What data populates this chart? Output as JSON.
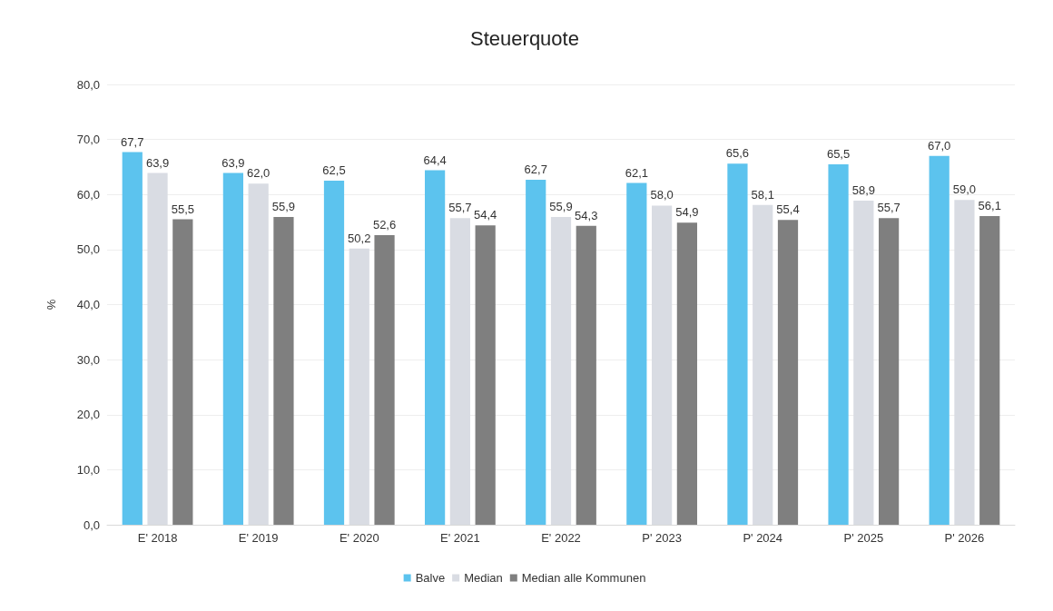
{
  "chart_data": {
    "type": "bar",
    "title": "Steuerquote",
    "ylabel": "%",
    "categories": [
      "E' 2018",
      "E' 2019",
      "E' 2020",
      "E' 2021",
      "E' 2022",
      "P' 2023",
      "P' 2024",
      "P' 2025",
      "P' 2026"
    ],
    "series": [
      {
        "name": "Balve",
        "color": "#5cc3ee",
        "values": [
          67.7,
          63.9,
          62.5,
          64.4,
          62.7,
          62.1,
          65.6,
          65.5,
          67.0
        ],
        "value_labels": [
          "67,7",
          "63,9",
          "62,5",
          "64,4",
          "62,7",
          "62,1",
          "65,6",
          "65,5",
          "67,0"
        ]
      },
      {
        "name": "Median",
        "color": "#d9dce3",
        "values": [
          63.9,
          62.0,
          50.2,
          55.7,
          55.9,
          58.0,
          58.1,
          58.9,
          59.0
        ],
        "value_labels": [
          "63,9",
          "62,0",
          "50,2",
          "55,7",
          "55,9",
          "58,0",
          "58,1",
          "58,9",
          "59,0"
        ]
      },
      {
        "name": "Median alle Kommunen",
        "color": "#7f7f7f",
        "values": [
          55.5,
          55.9,
          52.6,
          54.4,
          54.3,
          54.9,
          55.4,
          55.7,
          56.1
        ],
        "value_labels": [
          "55,5",
          "55,9",
          "52,6",
          "54,4",
          "54,3",
          "54,9",
          "55,4",
          "55,7",
          "56,1"
        ]
      }
    ],
    "ylim": [
      0,
      80
    ],
    "yticks": [
      {
        "value": 0,
        "label": "0,0"
      },
      {
        "value": 10,
        "label": "10,0"
      },
      {
        "value": 20,
        "label": "20,0"
      },
      {
        "value": 30,
        "label": "30,0"
      },
      {
        "value": 40,
        "label": "40,0"
      },
      {
        "value": 50,
        "label": "50,0"
      },
      {
        "value": 60,
        "label": "60,0"
      },
      {
        "value": 70,
        "label": "70,0"
      },
      {
        "value": 80,
        "label": "80,0"
      }
    ],
    "grid": "y",
    "legend": "bottom"
  }
}
